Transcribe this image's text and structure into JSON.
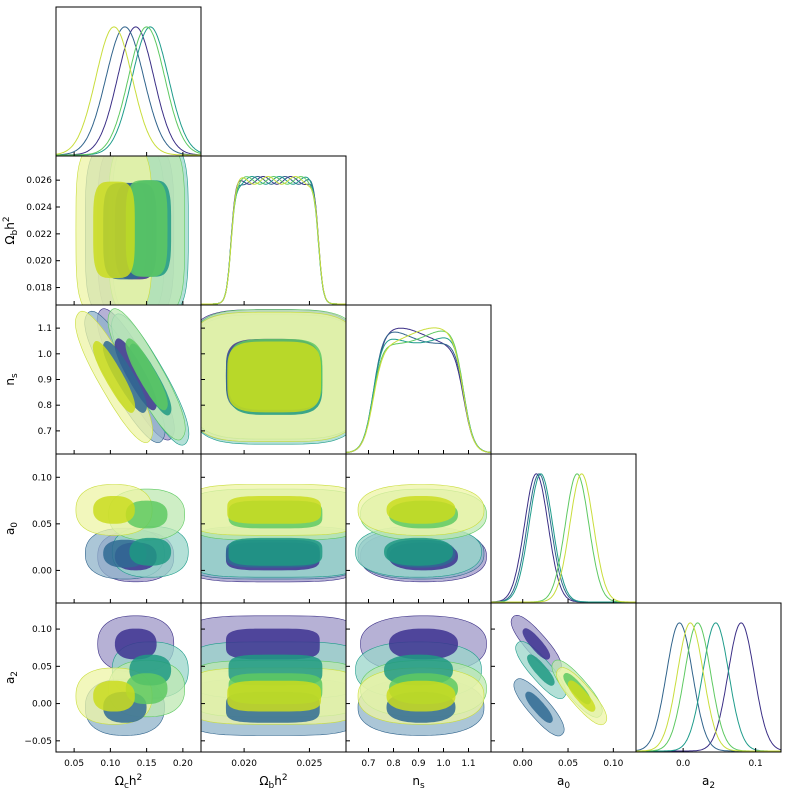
{
  "chart_data": {
    "type": "corner",
    "params": [
      {
        "key": "omch2",
        "label_base": "Ω",
        "label_sub": "c",
        "label_tail": "h",
        "label_sup": "2",
        "range": [
          0.025,
          0.225
        ],
        "ticks": [
          0.05,
          0.1,
          0.15,
          0.2
        ],
        "tick_labels": [
          "0.05",
          "0.10",
          "0.15",
          "0.20"
        ]
      },
      {
        "key": "ombh2",
        "label_base": "Ω",
        "label_sub": "b",
        "label_tail": "h",
        "label_sup": "2",
        "range": [
          0.0167,
          0.0278
        ],
        "ticks": [
          0.018,
          0.02,
          0.022,
          0.024,
          0.026
        ],
        "tick_labels": [
          "0.020",
          "0.025"
        ],
        "y_tick_labels": [
          "0.018",
          "0.020",
          "0.022",
          "0.024",
          "0.026"
        ],
        "x_ticks": [
          0.02,
          0.025
        ]
      },
      {
        "key": "ns",
        "label_base": "n",
        "label_sub": "s",
        "label_tail": "",
        "label_sup": "",
        "range": [
          0.61,
          1.19
        ],
        "ticks": [
          0.7,
          0.8,
          0.9,
          1.0,
          1.1
        ],
        "tick_labels": [
          "0.7",
          "0.8",
          "0.9",
          "1.0",
          "1.1"
        ]
      },
      {
        "key": "a0",
        "label_base": "a",
        "label_sub": "0",
        "label_tail": "",
        "label_sup": "",
        "range": [
          -0.035,
          0.125
        ],
        "ticks": [
          0.0,
          0.05,
          0.1
        ],
        "tick_labels": [
          "0.00",
          "0.05",
          "0.10"
        ]
      },
      {
        "key": "a2",
        "label_base": "a",
        "label_sub": "2",
        "label_tail": "",
        "label_sup": "",
        "range": [
          -0.065,
          0.135
        ],
        "ticks": [
          -0.05,
          0.0,
          0.05,
          0.1
        ],
        "tick_labels": [
          "−0.05",
          "0.00",
          "0.05",
          "0.10"
        ],
        "x_ticks": [
          0.0,
          0.1
        ],
        "x_tick_labels": [
          "0.0",
          "0.1"
        ]
      }
    ],
    "series": [
      {
        "color": "#3b2f86",
        "fill_outer": "#9e97c7",
        "fill_inner": "#3d3290",
        "mean": [
          0.135,
          0.0222,
          0.92,
          0.015,
          0.08
        ],
        "sigma": [
          0.025,
          0.0025,
          0.12,
          0.013,
          0.018
        ]
      },
      {
        "color": "#31648c",
        "fill_outer": "#8fb3c9",
        "fill_inner": "#2f6a93",
        "mean": [
          0.12,
          0.0222,
          0.91,
          0.018,
          -0.005
        ],
        "sigma": [
          0.026,
          0.0025,
          0.12,
          0.013,
          0.018
        ]
      },
      {
        "color": "#1f9c8b",
        "fill_outer": "#99d5c9",
        "fill_inner": "#1f9983",
        "mean": [
          0.155,
          0.0224,
          0.9,
          0.02,
          0.045
        ],
        "sigma": [
          0.025,
          0.0025,
          0.12,
          0.013,
          0.018
        ]
      },
      {
        "color": "#5ec962",
        "fill_outer": "#bde8b2",
        "fill_inner": "#5ec962",
        "mean": [
          0.15,
          0.0224,
          0.92,
          0.06,
          0.02
        ],
        "sigma": [
          0.025,
          0.0025,
          0.12,
          0.013,
          0.018
        ]
      },
      {
        "color": "#c9dd3c",
        "fill_outer": "#eef4a6",
        "fill_inner": "#cadc1e",
        "mean": [
          0.105,
          0.0223,
          0.91,
          0.065,
          0.01
        ],
        "sigma": [
          0.025,
          0.0025,
          0.12,
          0.013,
          0.018
        ]
      }
    ]
  }
}
